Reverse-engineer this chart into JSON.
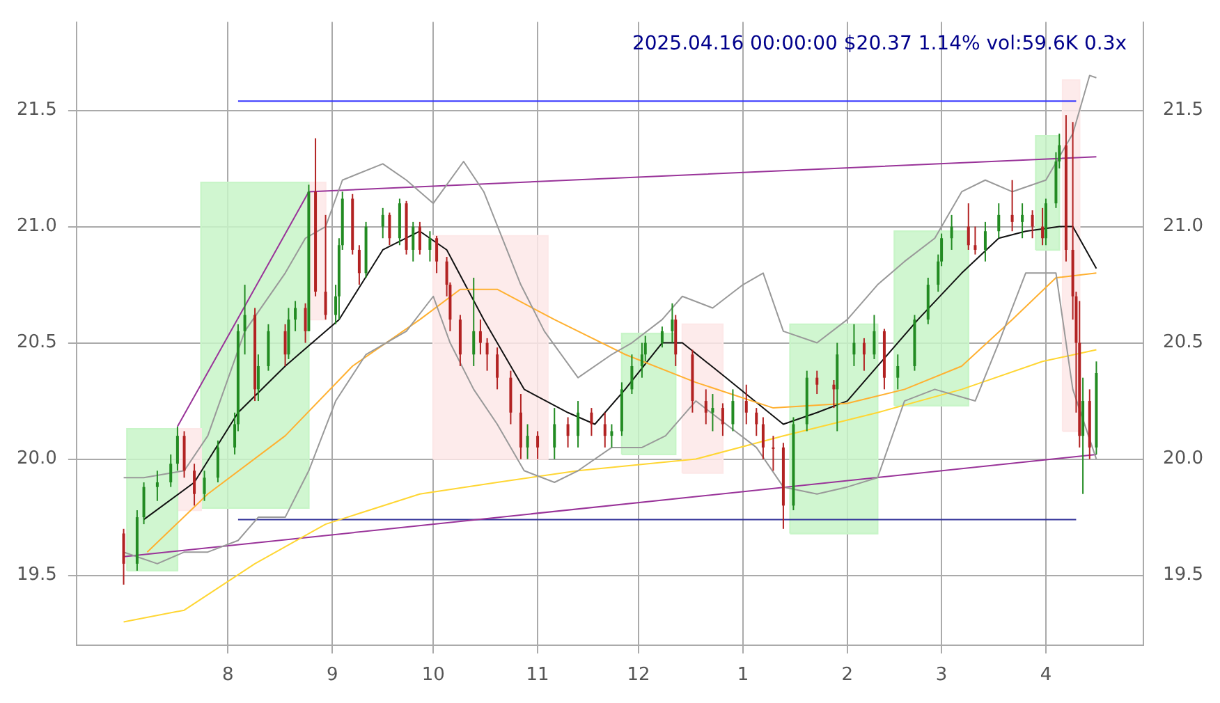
{
  "chart_data": {
    "type": "candlestick",
    "title": "2025.04.16 00:00:00 $20.37 1.14% vol:59.6K 0.3x",
    "x": [
      "2024-07-01",
      "2024-07-05",
      "2024-07-07",
      "2024-07-11",
      "2024-07-15",
      "2024-07-17",
      "2024-07-19",
      "2024-07-22",
      "2024-07-25",
      "2024-07-29",
      "2024-08-03",
      "2024-08-04",
      "2024-08-06",
      "2024-08-09",
      "2024-08-10",
      "2024-08-13",
      "2024-08-18",
      "2024-08-19",
      "2024-08-21",
      "2024-08-24",
      "2024-08-25",
      "2024-08-27",
      "2024-08-30",
      "2024-09-02",
      "2024-09-03",
      "2024-09-04",
      "2024-09-07",
      "2024-09-09",
      "2024-09-11",
      "2024-09-16",
      "2024-09-18",
      "2024-09-21",
      "2024-09-23",
      "2024-09-25",
      "2024-09-27",
      "2024-09-30",
      "2024-10-02",
      "2024-10-05",
      "2024-10-06",
      "2024-10-09",
      "2024-10-13",
      "2024-10-15",
      "2024-10-17",
      "2024-10-20",
      "2024-10-24",
      "2024-10-27",
      "2024-10-29",
      "2024-11-01",
      "2024-11-06",
      "2024-11-10",
      "2024-11-13",
      "2024-11-17",
      "2024-11-21",
      "2024-11-23",
      "2024-11-26",
      "2024-11-29",
      "2024-12-02",
      "2024-12-03",
      "2024-12-08",
      "2024-12-11",
      "2024-12-12",
      "2024-12-17",
      "2024-12-21",
      "2024-12-23",
      "2024-12-26",
      "2024-12-29",
      "2025-01-02",
      "2025-01-05",
      "2025-01-07",
      "2025-01-10",
      "2025-01-13",
      "2025-01-16",
      "2025-01-20",
      "2025-01-23",
      "2025-01-28",
      "2025-01-29",
      "2025-02-03",
      "2025-02-06",
      "2025-02-09",
      "2025-02-12",
      "2025-02-16",
      "2025-02-21",
      "2025-02-25",
      "2025-02-28",
      "2025-03-01",
      "2025-03-04",
      "2025-03-09",
      "2025-03-11",
      "2025-03-14",
      "2025-03-18",
      "2025-03-22",
      "2025-03-25",
      "2025-03-28",
      "2025-03-31",
      "2025-04-01",
      "2025-04-04",
      "2025-04-05",
      "2025-04-07",
      "2025-04-09",
      "2025-04-10",
      "2025-04-11",
      "2025-04-12",
      "2025-04-14",
      "2025-04-16"
    ],
    "ohlc": [
      [
        19.68,
        19.7,
        19.46,
        19.55
      ],
      [
        19.55,
        19.78,
        19.52,
        19.75
      ],
      [
        19.75,
        19.9,
        19.72,
        19.88
      ],
      [
        19.88,
        19.95,
        19.82,
        19.9
      ],
      [
        19.9,
        20.02,
        19.88,
        19.98
      ],
      [
        19.98,
        20.14,
        19.95,
        20.1
      ],
      [
        20.1,
        20.12,
        19.92,
        19.95
      ],
      [
        19.95,
        19.98,
        19.8,
        19.85
      ],
      [
        19.85,
        19.95,
        19.82,
        19.92
      ],
      [
        19.92,
        20.08,
        19.9,
        20.05
      ],
      [
        20.05,
        20.2,
        20.02,
        20.15
      ],
      [
        20.15,
        20.58,
        20.12,
        20.55
      ],
      [
        20.55,
        20.75,
        20.45,
        20.62
      ],
      [
        20.62,
        20.65,
        20.25,
        20.3
      ],
      [
        20.3,
        20.45,
        20.25,
        20.4
      ],
      [
        20.4,
        20.58,
        20.38,
        20.55
      ],
      [
        20.55,
        20.58,
        20.4,
        20.45
      ],
      [
        20.45,
        20.65,
        20.43,
        20.6
      ],
      [
        20.6,
        20.68,
        20.55,
        20.65
      ],
      [
        20.65,
        20.67,
        20.5,
        20.55
      ],
      [
        20.55,
        21.18,
        20.55,
        21.15
      ],
      [
        21.15,
        21.38,
        20.7,
        20.72
      ],
      [
        20.72,
        21.05,
        20.6,
        20.62
      ],
      [
        20.62,
        20.75,
        20.58,
        20.7
      ],
      [
        20.7,
        20.95,
        20.6,
        20.92
      ],
      [
        20.92,
        21.15,
        20.9,
        21.12
      ],
      [
        21.12,
        21.14,
        20.88,
        20.9
      ],
      [
        20.9,
        20.92,
        20.75,
        20.8
      ],
      [
        20.8,
        21.02,
        20.78,
        21.0
      ],
      [
        21.0,
        21.08,
        20.95,
        21.05
      ],
      [
        21.05,
        21.06,
        20.92,
        20.95
      ],
      [
        20.95,
        21.12,
        20.92,
        21.1
      ],
      [
        21.1,
        21.11,
        20.88,
        20.9
      ],
      [
        20.9,
        21.02,
        20.85,
        21.0
      ],
      [
        21.0,
        21.02,
        20.88,
        20.9
      ],
      [
        20.9,
        20.98,
        20.85,
        20.95
      ],
      [
        20.95,
        20.96,
        20.8,
        20.85
      ],
      [
        20.85,
        20.87,
        20.7,
        20.75
      ],
      [
        20.75,
        20.76,
        20.55,
        20.6
      ],
      [
        20.6,
        20.62,
        20.4,
        20.45
      ],
      [
        20.45,
        20.78,
        20.4,
        20.55
      ],
      [
        20.55,
        20.6,
        20.45,
        20.5
      ],
      [
        20.5,
        20.52,
        20.38,
        20.45
      ],
      [
        20.45,
        20.48,
        20.3,
        20.35
      ],
      [
        20.35,
        20.38,
        20.15,
        20.2
      ],
      [
        20.2,
        20.28,
        20.0,
        20.05
      ],
      [
        20.05,
        20.15,
        20.0,
        20.1
      ],
      [
        20.1,
        20.12,
        20.0,
        20.05
      ],
      [
        20.05,
        20.22,
        20.0,
        20.15
      ],
      [
        20.15,
        20.18,
        20.05,
        20.1
      ],
      [
        20.1,
        20.25,
        20.05,
        20.2
      ],
      [
        20.2,
        20.22,
        20.1,
        20.15
      ],
      [
        20.15,
        20.2,
        20.05,
        20.1
      ],
      [
        20.1,
        20.15,
        20.05,
        20.12
      ],
      [
        20.12,
        20.33,
        20.1,
        20.3
      ],
      [
        20.3,
        20.45,
        20.28,
        20.4
      ],
      [
        20.4,
        20.5,
        20.35,
        20.45
      ],
      [
        20.45,
        20.53,
        20.42,
        20.5
      ],
      [
        20.5,
        20.57,
        20.48,
        20.55
      ],
      [
        20.55,
        20.67,
        20.5,
        20.6
      ],
      [
        20.6,
        20.62,
        20.4,
        20.45
      ],
      [
        20.45,
        20.47,
        20.2,
        20.25
      ],
      [
        20.25,
        20.3,
        20.15,
        20.2
      ],
      [
        20.2,
        20.28,
        20.12,
        20.22
      ],
      [
        20.22,
        20.24,
        20.1,
        20.15
      ],
      [
        20.15,
        20.3,
        20.12,
        20.25
      ],
      [
        20.25,
        20.32,
        20.15,
        20.2
      ],
      [
        20.2,
        20.22,
        20.1,
        20.15
      ],
      [
        20.15,
        20.18,
        20.0,
        20.05
      ],
      [
        20.05,
        20.1,
        19.95,
        20.05
      ],
      [
        20.05,
        20.07,
        19.7,
        19.8
      ],
      [
        19.8,
        20.18,
        19.78,
        20.15
      ],
      [
        20.15,
        20.38,
        20.12,
        20.35
      ],
      [
        20.35,
        20.38,
        20.28,
        20.32
      ],
      [
        20.32,
        20.34,
        20.22,
        20.3
      ],
      [
        20.3,
        20.5,
        20.12,
        20.45
      ],
      [
        20.45,
        20.58,
        20.4,
        20.5
      ],
      [
        20.5,
        20.52,
        20.38,
        20.45
      ],
      [
        20.45,
        20.62,
        20.43,
        20.55
      ],
      [
        20.55,
        20.56,
        20.3,
        20.35
      ],
      [
        20.35,
        20.45,
        20.3,
        20.4
      ],
      [
        20.4,
        20.62,
        20.38,
        20.6
      ],
      [
        20.6,
        20.78,
        20.58,
        20.75
      ],
      [
        20.75,
        20.88,
        20.72,
        20.85
      ],
      [
        20.85,
        20.97,
        20.83,
        20.95
      ],
      [
        20.95,
        21.05,
        20.9,
        21.0
      ],
      [
        21.0,
        21.1,
        20.9,
        20.92
      ],
      [
        20.92,
        21.0,
        20.88,
        20.9
      ],
      [
        20.9,
        21.02,
        20.85,
        20.98
      ],
      [
        20.98,
        21.1,
        20.95,
        21.05
      ],
      [
        21.05,
        21.2,
        20.98,
        21.02
      ],
      [
        21.02,
        21.1,
        20.95,
        21.05
      ],
      [
        21.05,
        21.07,
        20.95,
        21.0
      ],
      [
        21.0,
        21.08,
        20.92,
        20.95
      ],
      [
        20.95,
        21.12,
        20.92,
        21.1
      ],
      [
        21.1,
        21.32,
        21.08,
        21.28
      ],
      [
        21.28,
        21.4,
        21.25,
        21.35
      ],
      [
        21.35,
        21.48,
        20.85,
        20.9
      ],
      [
        20.9,
        21.45,
        20.6,
        20.7
      ],
      [
        20.7,
        20.72,
        20.2,
        20.5
      ],
      [
        20.5,
        20.68,
        20.05,
        20.1
      ],
      [
        20.1,
        20.35,
        19.85,
        20.25
      ],
      [
        20.25,
        20.3,
        20.0,
        20.05
      ],
      [
        20.05,
        20.42,
        20.02,
        20.37
      ]
    ],
    "colors": [
      "#b22222",
      "#228b22",
      "#228b22",
      "#228b22",
      "#228b22",
      "#228b22",
      "#b22222",
      "#b22222",
      "#228b22",
      "#228b22",
      "#228b22",
      "#228b22",
      "#228b22",
      "#b22222",
      "#228b22",
      "#228b22",
      "#b22222",
      "#228b22",
      "#228b22",
      "#b22222",
      "#228b22",
      "#b22222",
      "#b22222",
      "#228b22",
      "#228b22",
      "#228b22",
      "#b22222",
      "#b22222",
      "#228b22",
      "#228b22",
      "#b22222",
      "#228b22",
      "#b22222",
      "#228b22",
      "#b22222",
      "#228b22",
      "#b22222",
      "#b22222",
      "#b22222",
      "#b22222",
      "#228b22",
      "#b22222",
      "#b22222",
      "#b22222",
      "#b22222",
      "#b22222",
      "#228b22",
      "#b22222",
      "#228b22",
      "#b22222",
      "#228b22",
      "#b22222",
      "#b22222",
      "#228b22",
      "#228b22",
      "#228b22",
      "#228b22",
      "#228b22",
      "#228b22",
      "#228b22",
      "#b22222",
      "#b22222",
      "#b22222",
      "#228b22",
      "#b22222",
      "#228b22",
      "#b22222",
      "#b22222",
      "#b22222",
      "#b22222",
      "#b22222",
      "#228b22",
      "#228b22",
      "#b22222",
      "#b22222",
      "#228b22",
      "#228b22",
      "#b22222",
      "#228b22",
      "#b22222",
      "#228b22",
      "#228b22",
      "#228b22",
      "#228b22",
      "#228b22",
      "#228b22",
      "#b22222",
      "#b22222",
      "#228b22",
      "#228b22",
      "#b22222",
      "#228b22",
      "#b22222",
      "#b22222",
      "#228b22",
      "#228b22",
      "#228b22",
      "#b22222",
      "#b22222",
      "#b22222",
      "#b22222",
      "#228b22",
      "#b22222",
      "#228b22"
    ],
    "series": [
      {
        "type": "area",
        "color": "#c8f5c8",
        "x": [
          "2024-07-02",
          "2024-07-17",
          "2024-07-17",
          "2024-07-02",
          "2024-07-02"
        ],
        "values": [
          19.52,
          19.52,
          20.13,
          20.13,
          19.52
        ]
      },
      {
        "type": "area",
        "color": "#fde8e8",
        "x": [
          "2024-07-17",
          "2024-07-24",
          "2024-07-24",
          "2024-07-17",
          "2024-07-17"
        ],
        "values": [
          19.78,
          19.78,
          20.13,
          20.13,
          19.78
        ]
      },
      {
        "type": "area",
        "color": "#c8f5c8",
        "x": [
          "2024-07-24",
          "2024-08-25",
          "2024-08-25",
          "2024-07-24",
          "2024-07-24"
        ],
        "values": [
          19.79,
          19.79,
          21.19,
          21.19,
          19.79
        ]
      },
      {
        "type": "area",
        "color": "#fde8e8",
        "x": [
          "2024-08-25",
          "2024-08-30",
          "2024-08-30",
          "2024-08-25",
          "2024-08-25"
        ],
        "values": [
          20.6,
          20.6,
          21.19,
          21.19,
          20.6
        ]
      },
      {
        "type": "area",
        "color": "#fde8e8",
        "x": [
          "2024-10-01",
          "2024-11-04",
          "2024-11-04",
          "2024-10-01",
          "2024-10-01"
        ],
        "values": [
          20.0,
          20.0,
          20.96,
          20.96,
          20.0
        ]
      },
      {
        "type": "area",
        "color": "#c8f5c8",
        "x": [
          "2024-11-26",
          "2024-12-12",
          "2024-12-12",
          "2024-11-26",
          "2024-11-26"
        ],
        "values": [
          20.02,
          20.02,
          20.54,
          20.54,
          20.02
        ]
      },
      {
        "type": "area",
        "color": "#fde8e8",
        "x": [
          "2024-12-14",
          "2024-12-26",
          "2024-12-26",
          "2024-12-14",
          "2024-12-14"
        ],
        "values": [
          19.94,
          19.94,
          20.58,
          20.58,
          19.94
        ]
      },
      {
        "type": "area",
        "color": "#c8f5c8",
        "x": [
          "2025-01-15",
          "2025-02-10",
          "2025-02-10",
          "2025-01-15",
          "2025-01-15"
        ],
        "values": [
          19.68,
          19.68,
          20.58,
          20.58,
          19.68
        ]
      },
      {
        "type": "area",
        "color": "#c8f5c8",
        "x": [
          "2025-02-15",
          "2025-03-09",
          "2025-03-09",
          "2025-02-15",
          "2025-02-15"
        ],
        "values": [
          20.23,
          20.23,
          20.98,
          20.98,
          20.23
        ]
      },
      {
        "type": "area",
        "color": "#c8f5c8",
        "x": [
          "2025-03-29",
          "2025-04-05",
          "2025-04-05",
          "2025-03-29",
          "2025-03-29"
        ],
        "values": [
          20.9,
          20.9,
          21.39,
          21.39,
          20.9
        ]
      },
      {
        "type": "area",
        "color": "#fde8e8",
        "x": [
          "2025-04-06",
          "2025-04-11",
          "2025-04-11",
          "2025-04-06",
          "2025-04-06"
        ],
        "values": [
          20.12,
          20.12,
          21.63,
          21.63,
          20.12
        ]
      },
      {
        "type": "line",
        "color": "#999999",
        "x": [
          "2024-07-01",
          "2024-07-07",
          "2024-07-19",
          "2024-07-26",
          "2024-08-06",
          "2024-08-18",
          "2024-08-24",
          "2024-08-30",
          "2024-09-04",
          "2024-09-16",
          "2024-09-23",
          "2024-10-01",
          "2024-10-10",
          "2024-10-16",
          "2024-10-27",
          "2024-11-03",
          "2024-11-13",
          "2024-11-23",
          "2024-11-29",
          "2024-12-08",
          "2024-12-14",
          "2024-12-23",
          "2025-01-01",
          "2025-01-07",
          "2025-01-13",
          "2025-01-23",
          "2025-02-01",
          "2025-02-10",
          "2025-02-18",
          "2025-02-27",
          "2025-03-07",
          "2025-03-14",
          "2025-03-22",
          "2025-04-01",
          "2025-04-09",
          "2025-04-14",
          "2025-04-16"
        ],
        "values": [
          19.92,
          19.92,
          19.95,
          20.1,
          20.55,
          20.8,
          20.95,
          21.0,
          21.2,
          21.27,
          21.2,
          21.1,
          21.28,
          21.15,
          20.75,
          20.55,
          20.35,
          20.45,
          20.5,
          20.6,
          20.7,
          20.65,
          20.75,
          20.8,
          20.55,
          20.5,
          20.6,
          20.75,
          20.85,
          20.95,
          21.15,
          21.2,
          21.15,
          21.2,
          21.4,
          21.65,
          21.64
        ]
      },
      {
        "type": "line",
        "color": "#999999",
        "x": [
          "2024-07-01",
          "2024-07-11",
          "2024-07-19",
          "2024-07-26",
          "2024-08-04",
          "2024-08-10",
          "2024-08-18",
          "2024-08-25",
          "2024-09-02",
          "2024-09-11",
          "2024-09-23",
          "2024-10-01",
          "2024-10-06",
          "2024-10-13",
          "2024-10-20",
          "2024-10-28",
          "2024-11-06",
          "2024-11-13",
          "2024-11-23",
          "2024-12-02",
          "2024-12-09",
          "2024-12-18",
          "2024-12-27",
          "2025-01-05",
          "2025-01-13",
          "2025-01-23",
          "2025-02-01",
          "2025-02-10",
          "2025-02-18",
          "2025-02-27",
          "2025-03-11",
          "2025-03-18",
          "2025-03-26",
          "2025-04-04",
          "2025-04-09",
          "2025-04-16"
        ],
        "values": [
          19.6,
          19.55,
          19.6,
          19.6,
          19.65,
          19.75,
          19.75,
          19.95,
          20.25,
          20.45,
          20.55,
          20.7,
          20.5,
          20.3,
          20.15,
          19.95,
          19.9,
          19.95,
          20.05,
          20.05,
          20.1,
          20.25,
          20.15,
          20.05,
          19.88,
          19.85,
          19.88,
          19.92,
          20.25,
          20.3,
          20.25,
          20.5,
          20.8,
          20.8,
          20.3,
          20.0
        ]
      },
      {
        "type": "line",
        "color": "#ffd633",
        "x": [
          "2024-07-01",
          "2024-07-19",
          "2024-08-09",
          "2024-08-30",
          "2024-09-27",
          "2024-10-20",
          "2024-11-13",
          "2024-12-18",
          "2025-01-13",
          "2025-02-10",
          "2025-03-07",
          "2025-03-31",
          "2025-04-16"
        ],
        "values": [
          19.3,
          19.35,
          19.55,
          19.72,
          19.85,
          19.9,
          19.95,
          20.0,
          20.1,
          20.2,
          20.3,
          20.42,
          20.47
        ]
      },
      {
        "type": "line",
        "color": "#ffb030",
        "x": [
          "2024-07-08",
          "2024-07-26",
          "2024-08-18",
          "2024-09-07",
          "2024-09-27",
          "2024-10-09",
          "2024-10-20",
          "2024-11-06",
          "2024-11-27",
          "2024-12-18",
          "2025-01-10",
          "2025-02-01",
          "2025-02-18",
          "2025-03-07",
          "2025-03-22",
          "2025-04-04",
          "2025-04-16"
        ],
        "values": [
          19.6,
          19.85,
          20.1,
          20.4,
          20.6,
          20.73,
          20.73,
          20.6,
          20.45,
          20.33,
          20.22,
          20.24,
          20.3,
          20.4,
          20.6,
          20.78,
          20.8
        ]
      },
      {
        "type": "line",
        "color": "#111111",
        "x": [
          "2024-07-07",
          "2024-07-22",
          "2024-08-04",
          "2024-08-18",
          "2024-09-03",
          "2024-09-16",
          "2024-09-27",
          "2024-10-05",
          "2024-10-16",
          "2024-10-28",
          "2024-11-10",
          "2024-11-18",
          "2024-11-27",
          "2024-12-08",
          "2024-12-14",
          "2024-12-27",
          "2025-01-07",
          "2025-01-13",
          "2025-01-23",
          "2025-02-01",
          "2025-02-10",
          "2025-02-22",
          "2025-03-07",
          "2025-03-18",
          "2025-03-26",
          "2025-04-05",
          "2025-04-09",
          "2025-04-16"
        ],
        "values": [
          19.74,
          19.9,
          20.2,
          20.4,
          20.6,
          20.9,
          20.98,
          20.9,
          20.6,
          20.3,
          20.2,
          20.15,
          20.3,
          20.5,
          20.5,
          20.35,
          20.22,
          20.15,
          20.2,
          20.25,
          20.4,
          20.6,
          20.8,
          20.95,
          20.98,
          21.0,
          21.0,
          20.82
        ]
      },
      {
        "type": "line",
        "color": "#993399",
        "x": [
          "2024-07-01",
          "2025-04-16"
        ],
        "values": [
          19.58,
          20.02
        ]
      },
      {
        "type": "line",
        "color": "#993399",
        "x": [
          "2024-07-17",
          "2024-08-25",
          "2025-04-16"
        ],
        "values": [
          20.14,
          21.15,
          21.3
        ]
      },
      {
        "type": "line",
        "color": "#3333ff",
        "x": [
          "2024-08-04",
          "2025-04-10"
        ],
        "values": [
          21.54,
          21.54
        ]
      },
      {
        "type": "line",
        "color": "#333399",
        "x": [
          "2024-08-04",
          "2025-04-10"
        ],
        "values": [
          19.74,
          19.74
        ]
      }
    ],
    "xlim": [
      "2024-06-17",
      "2025-04-30"
    ],
    "xticks": [
      {
        "value": "2024-08-01",
        "label": "8"
      },
      {
        "value": "2024-09-01",
        "label": "9"
      },
      {
        "value": "2024-10-01",
        "label": "10"
      },
      {
        "value": "2024-11-01",
        "label": "11"
      },
      {
        "value": "2024-12-01",
        "label": "12"
      },
      {
        "value": "2025-01-01",
        "label": "1"
      },
      {
        "value": "2025-02-01",
        "label": "2"
      },
      {
        "value": "2025-03-01",
        "label": "3"
      },
      {
        "value": "2025-04-01",
        "label": "4"
      }
    ],
    "ylim": [
      19.2,
      21.88
    ],
    "yticks": [
      {
        "value": 19.5,
        "label": "19.5"
      },
      {
        "value": 20,
        "label": "20.0"
      },
      {
        "value": 20.5,
        "label": "20.5"
      },
      {
        "value": 21,
        "label": "21.0"
      },
      {
        "value": 21.5,
        "label": "21.5"
      }
    ],
    "y2lim": [
      19.2,
      21.88
    ],
    "y2ticks": [
      {
        "value": 19.5,
        "label": "19.5"
      },
      {
        "value": 20,
        "label": "20.0"
      },
      {
        "value": 20.5,
        "label": "20.5"
      },
      {
        "value": 21,
        "label": "21.0"
      },
      {
        "value": 21.5,
        "label": "21.5"
      }
    ],
    "grid": true,
    "legend": false
  }
}
